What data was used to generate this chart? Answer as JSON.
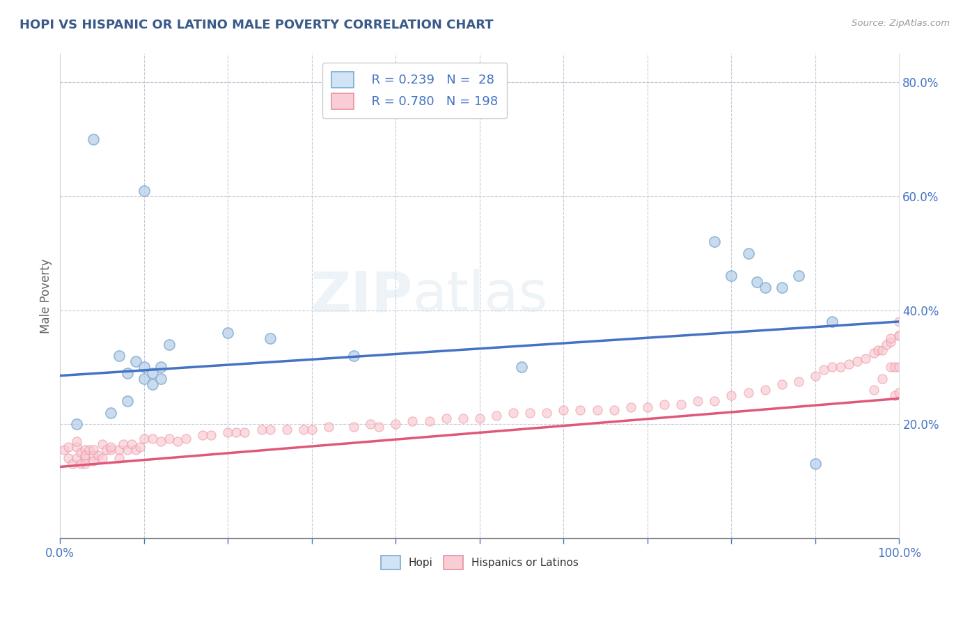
{
  "title": "HOPI VS HISPANIC OR LATINO MALE POVERTY CORRELATION CHART",
  "source": "Source: ZipAtlas.com",
  "ylabel": "Male Poverty",
  "xlim": [
    0,
    1
  ],
  "ylim": [
    0.0,
    0.85
  ],
  "yticks_right": [
    0.2,
    0.4,
    0.6,
    0.8
  ],
  "hopi_color": "#b8d0e8",
  "hopi_edge_color": "#7aaad0",
  "hopi_line_color": "#4472c4",
  "hispanic_color": "#f9c8d0",
  "hispanic_edge_color": "#e890a0",
  "hispanic_line_color": "#e05878",
  "legend_box_color": "#d0e4f5",
  "legend_pink_color": "#f9cdd4",
  "R_hopi": 0.239,
  "N_hopi": 28,
  "R_hispanic": 0.78,
  "N_hispanic": 198,
  "watermark_zip": "ZIP",
  "watermark_atlas": "atlas",
  "title_color": "#3a5a8a",
  "axis_label_color": "#666666",
  "tick_color": "#4472c4",
  "background_color": "#ffffff",
  "grid_color": "#c8c8d8",
  "hopi_trend": [
    0.285,
    0.38
  ],
  "hispanic_trend": [
    0.125,
    0.245
  ],
  "hopi_scatter_x": [
    0.02,
    0.04,
    0.06,
    0.07,
    0.08,
    0.08,
    0.09,
    0.1,
    0.1,
    0.1,
    0.11,
    0.11,
    0.12,
    0.12,
    0.13,
    0.2,
    0.25,
    0.35,
    0.55,
    0.78,
    0.8,
    0.82,
    0.83,
    0.84,
    0.86,
    0.88,
    0.9,
    0.92
  ],
  "hopi_scatter_y": [
    0.2,
    0.7,
    0.22,
    0.32,
    0.29,
    0.24,
    0.31,
    0.3,
    0.61,
    0.28,
    0.29,
    0.27,
    0.28,
    0.3,
    0.34,
    0.36,
    0.35,
    0.32,
    0.3,
    0.52,
    0.46,
    0.5,
    0.45,
    0.44,
    0.44,
    0.46,
    0.13,
    0.38
  ],
  "hispanic_scatter_x": [
    0.005,
    0.01,
    0.01,
    0.015,
    0.02,
    0.02,
    0.02,
    0.025,
    0.025,
    0.03,
    0.03,
    0.03,
    0.03,
    0.035,
    0.04,
    0.04,
    0.04,
    0.045,
    0.05,
    0.05,
    0.055,
    0.06,
    0.06,
    0.07,
    0.07,
    0.075,
    0.08,
    0.085,
    0.09,
    0.095,
    0.1,
    0.11,
    0.12,
    0.13,
    0.14,
    0.15,
    0.17,
    0.18,
    0.2,
    0.21,
    0.22,
    0.24,
    0.25,
    0.27,
    0.29,
    0.3,
    0.32,
    0.35,
    0.37,
    0.38,
    0.4,
    0.42,
    0.44,
    0.46,
    0.48,
    0.5,
    0.52,
    0.54,
    0.56,
    0.58,
    0.6,
    0.62,
    0.64,
    0.66,
    0.68,
    0.7,
    0.72,
    0.74,
    0.76,
    0.78,
    0.8,
    0.82,
    0.84,
    0.86,
    0.88,
    0.9,
    0.91,
    0.92,
    0.93,
    0.94,
    0.95,
    0.96,
    0.97,
    0.97,
    0.975,
    0.98,
    0.98,
    0.985,
    0.99,
    0.99,
    0.99,
    0.995,
    0.995,
    1.0,
    1.0,
    1.0,
    1.0,
    1.0
  ],
  "hispanic_scatter_y": [
    0.155,
    0.14,
    0.16,
    0.13,
    0.14,
    0.16,
    0.17,
    0.15,
    0.13,
    0.14,
    0.155,
    0.145,
    0.13,
    0.155,
    0.145,
    0.135,
    0.155,
    0.145,
    0.14,
    0.165,
    0.155,
    0.155,
    0.16,
    0.155,
    0.14,
    0.165,
    0.155,
    0.165,
    0.155,
    0.16,
    0.175,
    0.175,
    0.17,
    0.175,
    0.17,
    0.175,
    0.18,
    0.18,
    0.185,
    0.185,
    0.185,
    0.19,
    0.19,
    0.19,
    0.19,
    0.19,
    0.195,
    0.195,
    0.2,
    0.195,
    0.2,
    0.205,
    0.205,
    0.21,
    0.21,
    0.21,
    0.215,
    0.22,
    0.22,
    0.22,
    0.225,
    0.225,
    0.225,
    0.225,
    0.23,
    0.23,
    0.235,
    0.235,
    0.24,
    0.24,
    0.25,
    0.255,
    0.26,
    0.27,
    0.275,
    0.285,
    0.295,
    0.3,
    0.3,
    0.305,
    0.31,
    0.315,
    0.325,
    0.26,
    0.33,
    0.33,
    0.28,
    0.34,
    0.345,
    0.3,
    0.35,
    0.25,
    0.3,
    0.355,
    0.3,
    0.255,
    0.38,
    0.355
  ]
}
